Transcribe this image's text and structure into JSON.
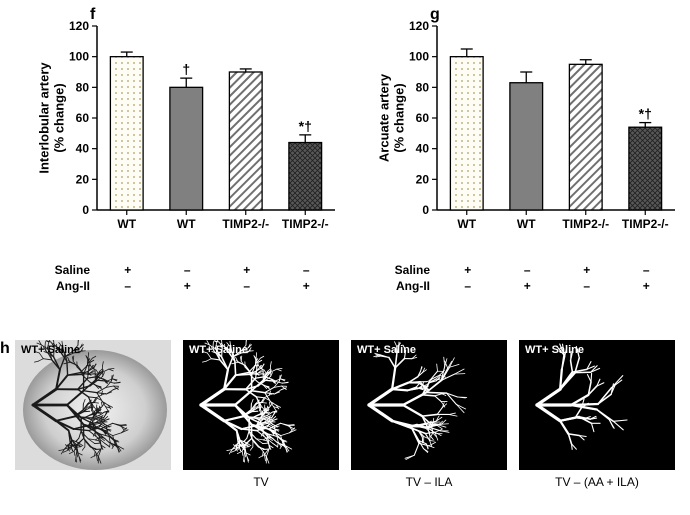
{
  "panels": {
    "f": {
      "label": "f",
      "ylabel_line1": "Interlobular artery",
      "ylabel_line2": "(% change)",
      "ylim": [
        0,
        120
      ],
      "ytick_step": 20,
      "label_fontsize": 12,
      "background_color": "#ffffff",
      "axis_color": "#000000",
      "type": "bar",
      "bar_width": 0.55,
      "categories": [
        "WT",
        "WT",
        "TIMP2-/-",
        "TIMP2-/-"
      ],
      "saline": [
        "+",
        "–",
        "+",
        "–"
      ],
      "angII": [
        "–",
        "+",
        "–",
        "+"
      ],
      "values": [
        100,
        80,
        90,
        44
      ],
      "err": [
        3,
        6,
        2,
        5
      ],
      "patterns": [
        "dots",
        "solid",
        "stripes",
        "crosshatch"
      ],
      "bar_fill": [
        "#fafaf0",
        "#808080",
        "#ffffff",
        "#606060"
      ],
      "bar_stroke": "#000000",
      "sig": [
        "",
        "†",
        "",
        "*†"
      ]
    },
    "g": {
      "label": "g",
      "ylabel_line1": "Arcuate artery",
      "ylabel_line2": "(% change)",
      "ylim": [
        0,
        120
      ],
      "ytick_step": 20,
      "label_fontsize": 12,
      "background_color": "#ffffff",
      "axis_color": "#000000",
      "type": "bar",
      "bar_width": 0.55,
      "categories": [
        "WT",
        "WT",
        "TIMP2-/-",
        "TIMP2-/-"
      ],
      "saline": [
        "+",
        "–",
        "+",
        "–"
      ],
      "angII": [
        "–",
        "+",
        "–",
        "+"
      ],
      "values": [
        100,
        83,
        95,
        54
      ],
      "err": [
        5,
        7,
        3,
        3
      ],
      "patterns": [
        "dots",
        "solid",
        "stripes",
        "crosshatch"
      ],
      "bar_fill": [
        "#fafaf0",
        "#808080",
        "#ffffff",
        "#606060"
      ],
      "bar_stroke": "#000000",
      "sig": [
        "",
        "",
        "",
        "*†"
      ]
    }
  },
  "cond_labels": {
    "saline": "Saline",
    "angII": "Ang-II"
  },
  "h": {
    "label": "h",
    "images": [
      {
        "inner_label": "WT+ Saline",
        "caption": "",
        "mode": "photo"
      },
      {
        "inner_label": "WT+ Saline",
        "caption": "TV",
        "mode": "tree",
        "complexity": 3
      },
      {
        "inner_label": "WT+ Saline",
        "caption": "TV – ILA",
        "mode": "tree",
        "complexity": 2
      },
      {
        "inner_label": "WT+ Saline",
        "caption": "TV – (AA + ILA)",
        "mode": "tree",
        "complexity": 1
      }
    ],
    "photo_bg": "#dcdcdc",
    "vessel_dark": "#1a1a1a",
    "tree_color": "#ffffff",
    "tree_bg": "#000000"
  }
}
